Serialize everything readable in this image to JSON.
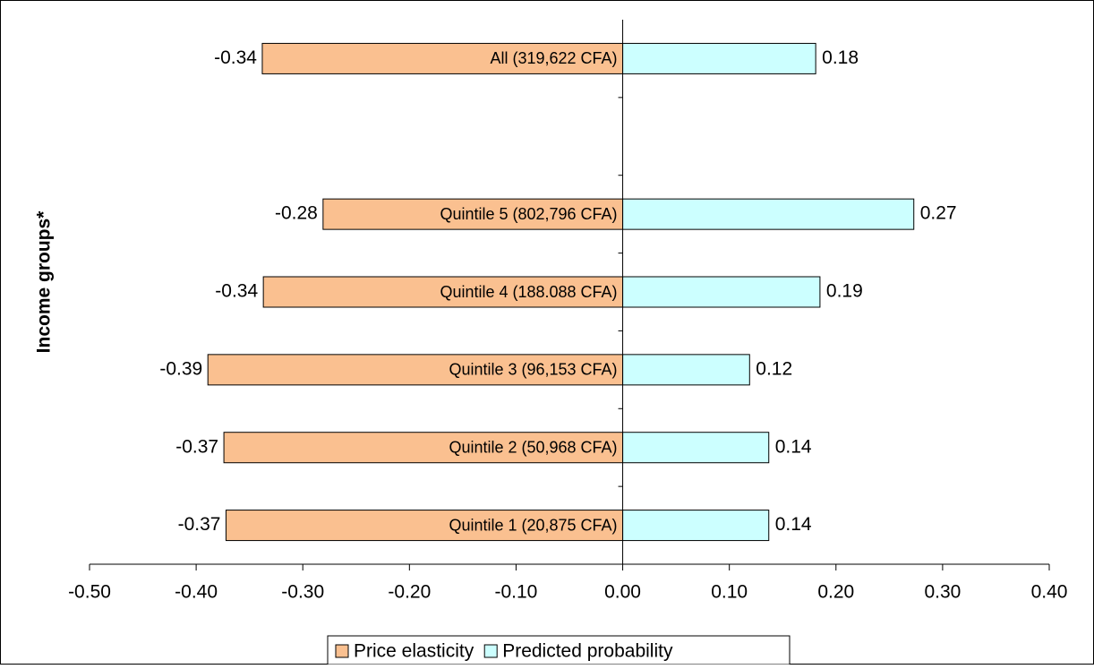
{
  "chart_data": {
    "type": "bar",
    "orientation": "horizontal",
    "ylabel": "Income groups*",
    "xlabel": "",
    "xlim": [
      -0.5,
      0.4
    ],
    "x_ticks": [
      "-0.50",
      "-0.40",
      "-0.30",
      "-0.20",
      "-0.10",
      "0.00",
      "0.10",
      "0.20",
      "0.30",
      "0.40"
    ],
    "x_tick_values": [
      -0.5,
      -0.4,
      -0.3,
      -0.2,
      -0.1,
      0.0,
      0.1,
      0.2,
      0.3,
      0.4
    ],
    "categories": [
      "Quintile 1 (20,875 CFA)",
      "Quintile 2 (50,968 CFA)",
      "Quintile 3 (96,153 CFA)",
      "Quintile 4 (188.088 CFA)",
      "Quintile 5 (802,796 CFA)",
      "",
      "All (319,622 CFA)"
    ],
    "series": [
      {
        "name": "Price elasticity",
        "color": "#fac090",
        "values": [
          -0.372,
          -0.374,
          -0.389,
          -0.337,
          -0.281,
          null,
          -0.338
        ],
        "labels": [
          "-0.37",
          "-0.37",
          "-0.39",
          "-0.34",
          "-0.28",
          "",
          "-0.34"
        ]
      },
      {
        "name": "Predicted probability",
        "color": "#ccffff",
        "values": [
          0.137,
          0.137,
          0.119,
          0.185,
          0.273,
          null,
          0.181
        ],
        "labels": [
          "0.14",
          "0.14",
          "0.12",
          "0.19",
          "0.27",
          "",
          "0.18"
        ]
      }
    ],
    "legend": {
      "position": "bottom"
    },
    "grid": false
  }
}
